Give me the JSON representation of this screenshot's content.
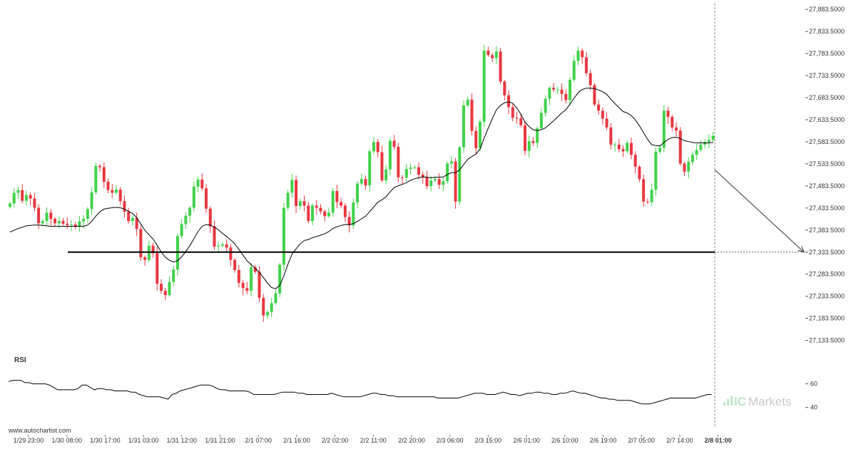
{
  "chart_data": {
    "type": "candlestick",
    "y_axis": {
      "ticks": [
        "27,883.5000",
        "27,833.5000",
        "27,783.5000",
        "27,733.5000",
        "27,683.5000",
        "27,633.5000",
        "27,583.5000",
        "27,533.5000",
        "27,483.5000",
        "27,433.5000",
        "27,383.5000",
        "27,333.5000",
        "27,283.5000",
        "27,233.5000",
        "27,183.5000",
        "27,133.5000"
      ],
      "range": [
        27113.5,
        27893.5
      ]
    },
    "x_axis": {
      "labels": [
        "1/29 23:00",
        "1/30 08:00",
        "1/30 17:00",
        "1/31 03:00",
        "1/31 12:00",
        "1/31 21:00",
        "2/1 07:00",
        "2/1 16:00",
        "2/2 02:00",
        "2/2 11:00",
        "2/2 20:00",
        "2/3 06:00",
        "2/3 15:00",
        "2/6 01:00",
        "2/6 10:00",
        "2/6 19:00",
        "2/7 05:00",
        "2/7 14:00",
        "2/8 01:00"
      ],
      "highlight": "2/8 01:00"
    },
    "close": [
      27444,
      27468,
      27474,
      27450,
      27463,
      27455,
      27434,
      27399,
      27404,
      27423,
      27409,
      27399,
      27404,
      27398,
      27395,
      27396,
      27391,
      27403,
      27409,
      27431,
      27469,
      27529,
      27526,
      27493,
      27474,
      27468,
      27475,
      27449,
      27425,
      27404,
      27411,
      27386,
      27322,
      27316,
      27348,
      27331,
      27262,
      27246,
      27236,
      27266,
      27294,
      27370,
      27397,
      27416,
      27434,
      27482,
      27498,
      27478,
      27432,
      27392,
      27346,
      27348,
      27351,
      27344,
      27316,
      27293,
      27264,
      27252,
      27246,
      27299,
      27289,
      27230,
      27190,
      27198,
      27218,
      27240,
      27305,
      27434,
      27468,
      27497,
      27438,
      27449,
      27439,
      27404,
      27439,
      27434,
      27426,
      27415,
      27423,
      27472,
      27447,
      27439,
      27413,
      27394,
      27446,
      27489,
      27499,
      27485,
      27562,
      27583,
      27560,
      27496,
      27521,
      27586,
      27572,
      27503,
      27502,
      27522,
      27525,
      27526,
      27509,
      27504,
      27483,
      27496,
      27499,
      27486,
      27494,
      27534,
      27539,
      27448,
      27571,
      27666,
      27679,
      27608,
      27569,
      27629,
      27790,
      27780,
      27773,
      27788,
      27720,
      27689,
      27662,
      27638,
      27637,
      27621,
      27563,
      27585,
      27581,
      27614,
      27649,
      27681,
      27706,
      27702,
      27702,
      27692,
      27678,
      27724,
      27767,
      27790,
      27775,
      27739,
      27712,
      27668,
      27654,
      27636,
      27616,
      27577,
      27577,
      27567,
      27562,
      27581,
      27554,
      27527,
      27499,
      27448,
      27447,
      27475,
      27561,
      27570,
      27654,
      27640,
      27616,
      27609,
      27534,
      27516,
      27538,
      27554,
      27565,
      27577,
      27583,
      27588,
      27597
    ],
    "sma": [
      27379,
      27383,
      27387,
      27390,
      27393,
      27394,
      27395,
      27395,
      27394,
      27393,
      27392,
      27392,
      27392,
      27392,
      27392,
      27392,
      27392,
      27392,
      27392,
      27395,
      27403,
      27415,
      27425,
      27431,
      27433,
      27434,
      27435,
      27434,
      27431,
      27426,
      27421,
      27412,
      27397,
      27383,
      27373,
      27363,
      27349,
      27334,
      27322,
      27315,
      27311,
      27314,
      27323,
      27335,
      27348,
      27364,
      27380,
      27392,
      27396,
      27395,
      27390,
      27384,
      27376,
      27369,
      27361,
      27352,
      27340,
      27327,
      27314,
      27305,
      27297,
      27288,
      27276,
      27263,
      27253,
      27251,
      27258,
      27280,
      27306,
      27329,
      27341,
      27352,
      27360,
      27362,
      27366,
      27369,
      27372,
      27375,
      27380,
      27387,
      27391,
      27394,
      27396,
      27396,
      27398,
      27403,
      27409,
      27415,
      27425,
      27436,
      27447,
      27452,
      27459,
      27470,
      27480,
      27484,
      27487,
      27491,
      27496,
      27500,
      27502,
      27504,
      27503,
      27502,
      27503,
      27503,
      27504,
      27509,
      27514,
      27513,
      27520,
      27532,
      27544,
      27550,
      27556,
      27567,
      27592,
      27614,
      27636,
      27656,
      27666,
      27672,
      27674,
      27671,
      27660,
      27646,
      27628,
      27618,
      27611,
      27609,
      27611,
      27615,
      27623,
      27631,
      27640,
      27649,
      27656,
      27669,
      27682,
      27695,
      27702,
      27705,
      27705,
      27704,
      27701,
      27697,
      27691,
      27680,
      27670,
      27661,
      27652,
      27649,
      27643,
      27633,
      27620,
      27604,
      27589,
      27577,
      27575,
      27574,
      27582,
      27589,
      27593,
      27594,
      27591,
      27586,
      27584,
      27582,
      27581,
      27581,
      27581,
      27581,
      27582
    ],
    "sma_period": 24,
    "support_level": 27333.5,
    "projection": {
      "from": 27520,
      "to": 27333.5
    },
    "rsi": {
      "title": "RSI",
      "ticks": [
        "60",
        "40"
      ],
      "values": [
        62,
        63,
        63,
        63,
        61,
        61,
        60,
        60,
        60,
        60,
        59,
        57,
        55,
        55,
        55,
        55,
        55,
        56,
        59,
        59,
        57,
        55,
        56,
        56,
        55,
        55,
        54,
        54,
        54,
        54,
        53,
        53,
        51,
        50,
        49,
        49,
        49,
        49,
        48,
        47,
        51,
        52,
        54,
        55,
        56,
        57,
        58,
        59,
        59,
        59,
        58,
        56,
        55,
        55,
        54,
        54,
        54,
        54,
        54,
        53,
        51,
        51,
        51,
        51,
        51,
        51,
        52,
        53,
        53,
        53,
        53,
        52,
        52,
        51,
        51,
        51,
        51,
        51,
        51,
        52,
        51,
        50,
        49,
        49,
        49,
        49,
        49,
        50,
        51,
        52,
        52,
        51,
        51,
        50,
        50,
        49,
        49,
        49,
        49,
        49,
        49,
        49,
        49,
        49,
        49,
        48,
        48,
        48,
        48,
        48,
        48,
        49,
        50,
        51,
        52,
        52,
        52,
        51,
        51,
        51,
        52,
        53,
        52,
        51,
        51,
        50,
        51,
        52,
        52,
        53,
        53,
        52,
        52,
        51,
        51,
        52,
        52,
        53,
        54,
        53,
        52,
        52,
        51,
        50,
        49,
        48,
        48,
        47,
        47,
        46,
        46,
        46,
        46,
        45,
        44,
        43,
        43,
        43,
        44,
        45,
        46,
        47,
        48,
        48,
        48,
        48,
        48,
        48,
        48,
        49,
        50,
        51,
        51
      ],
      "ylim": [
        32,
        70
      ]
    },
    "watermark": "www.autochartist.com",
    "brand": {
      "prefix": "IC",
      "suffix": "Markets"
    },
    "colors": {
      "up": "#41d14a",
      "down": "#e8373f",
      "line": "#000000",
      "support": "#000000"
    }
  }
}
